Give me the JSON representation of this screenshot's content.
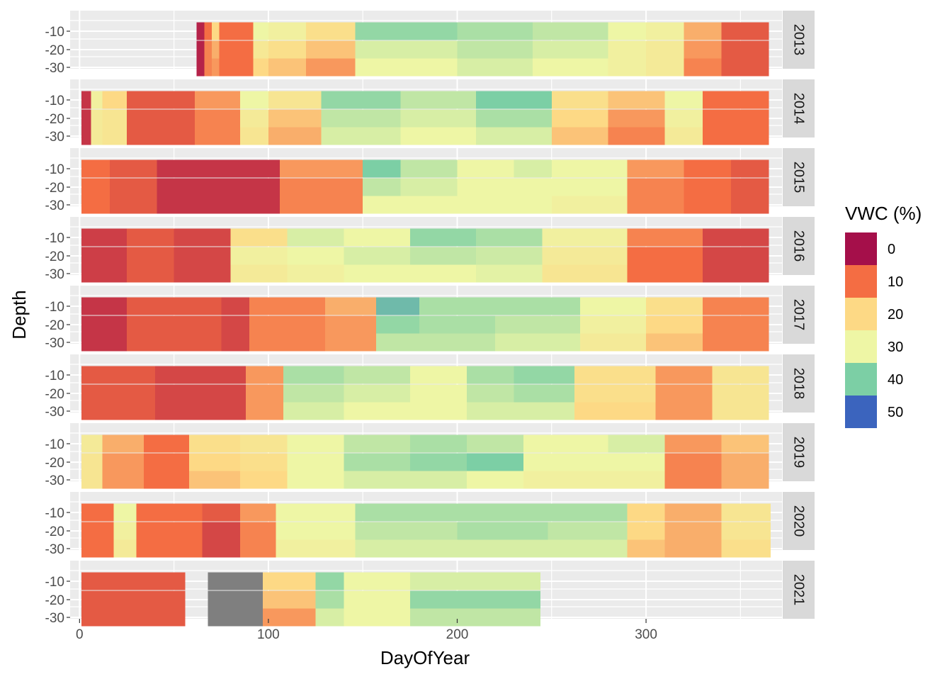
{
  "chart_data": {
    "type": "heatmap",
    "xlabel": "DayOfYear",
    "ylabel": "Depth",
    "xlim": [
      -5,
      372
    ],
    "x_ticks": [
      0,
      100,
      200,
      300
    ],
    "x_tick_labels": [
      "0",
      "100",
      "200",
      "300"
    ],
    "y_categories": [
      -10,
      -20,
      -30
    ],
    "y_tick_labels": [
      "-10",
      "-20",
      "-30"
    ],
    "facet_by": "year",
    "facet_labels": [
      "2013",
      "2014",
      "2015",
      "2016",
      "2017",
      "2018",
      "2019",
      "2020",
      "2021"
    ],
    "grid": true,
    "legend": {
      "title": "VWC (%)",
      "position": "right",
      "breaks": [
        0,
        10,
        20,
        30,
        40,
        50
      ],
      "labels": [
        "0",
        "10",
        "20",
        "30",
        "40",
        "50"
      ],
      "colors": [
        "#A50F4A",
        "#F46D43",
        "#FDD985",
        "#EEF6A5",
        "#7CCFA5",
        "#3B64BE"
      ]
    },
    "missing_color": "#7F7F7F",
    "series": [
      {
        "name": "2013",
        "start_day": 62,
        "end_day": 365,
        "segments": [
          [
            62,
            66,
            2,
            2,
            2
          ],
          [
            66,
            70,
            10,
            12,
            12
          ],
          [
            70,
            74,
            20,
            16,
            14
          ],
          [
            74,
            92,
            10,
            10,
            10
          ],
          [
            92,
            100,
            30,
            25,
            20
          ],
          [
            100,
            120,
            28,
            22,
            18
          ],
          [
            120,
            146,
            22,
            18,
            14
          ],
          [
            146,
            200,
            38,
            32,
            30
          ],
          [
            200,
            240,
            36,
            34,
            32
          ],
          [
            240,
            280,
            34,
            32,
            30
          ],
          [
            280,
            300,
            30,
            28,
            28
          ],
          [
            300,
            320,
            28,
            26,
            26
          ],
          [
            320,
            340,
            16,
            14,
            12
          ],
          [
            340,
            365,
            8,
            8,
            8
          ]
        ]
      },
      {
        "name": "2014",
        "start_day": 1,
        "end_day": 365,
        "segments": [
          [
            1,
            6,
            4,
            4,
            4
          ],
          [
            6,
            12,
            28,
            26,
            26
          ],
          [
            12,
            25,
            20,
            24,
            24
          ],
          [
            25,
            61,
            8,
            8,
            8
          ],
          [
            61,
            85,
            14,
            12,
            12
          ],
          [
            85,
            100,
            30,
            26,
            24
          ],
          [
            100,
            128,
            24,
            18,
            16
          ],
          [
            128,
            170,
            38,
            34,
            32
          ],
          [
            170,
            210,
            34,
            32,
            30
          ],
          [
            210,
            250,
            40,
            36,
            32
          ],
          [
            250,
            280,
            22,
            20,
            18
          ],
          [
            280,
            310,
            18,
            14,
            12
          ],
          [
            310,
            330,
            30,
            28,
            26
          ],
          [
            330,
            365,
            10,
            10,
            10
          ]
        ]
      },
      {
        "name": "2015",
        "start_day": 1,
        "end_day": 365,
        "segments": [
          [
            1,
            16,
            10,
            10,
            10
          ],
          [
            16,
            41,
            8,
            8,
            8
          ],
          [
            41,
            106,
            4,
            4,
            4
          ],
          [
            106,
            150,
            14,
            12,
            12
          ],
          [
            150,
            170,
            40,
            34,
            30
          ],
          [
            170,
            200,
            34,
            32,
            30
          ],
          [
            200,
            230,
            30,
            30,
            30
          ],
          [
            230,
            250,
            32,
            30,
            30
          ],
          [
            250,
            290,
            30,
            30,
            28
          ],
          [
            290,
            320,
            14,
            12,
            12
          ],
          [
            320,
            345,
            10,
            10,
            10
          ],
          [
            345,
            365,
            8,
            8,
            8
          ]
        ]
      },
      {
        "name": "2016",
        "start_day": 1,
        "end_day": 365,
        "segments": [
          [
            1,
            25,
            5,
            5,
            5
          ],
          [
            25,
            50,
            8,
            8,
            8
          ],
          [
            50,
            80,
            6,
            6,
            6
          ],
          [
            80,
            110,
            22,
            28,
            26
          ],
          [
            110,
            140,
            32,
            30,
            28
          ],
          [
            140,
            175,
            30,
            32,
            30
          ],
          [
            175,
            210,
            38,
            34,
            30
          ],
          [
            210,
            245,
            36,
            33,
            31
          ],
          [
            245,
            290,
            28,
            26,
            24
          ],
          [
            290,
            330,
            12,
            10,
            10
          ],
          [
            330,
            365,
            6,
            6,
            6
          ]
        ]
      },
      {
        "name": "2017",
        "start_day": 1,
        "end_day": 365,
        "segments": [
          [
            1,
            25,
            4,
            4,
            4
          ],
          [
            25,
            75,
            8,
            8,
            8
          ],
          [
            75,
            90,
            6,
            6,
            6
          ],
          [
            90,
            130,
            12,
            12,
            12
          ],
          [
            130,
            157,
            16,
            14,
            14
          ],
          [
            157,
            180,
            42,
            38,
            34
          ],
          [
            180,
            220,
            36,
            36,
            34
          ],
          [
            220,
            265,
            36,
            34,
            32
          ],
          [
            265,
            300,
            30,
            28,
            26
          ],
          [
            300,
            330,
            22,
            20,
            18
          ],
          [
            330,
            365,
            12,
            12,
            12
          ]
        ]
      },
      {
        "name": "2018",
        "start_day": 1,
        "end_day": 365,
        "segments": [
          [
            1,
            40,
            8,
            8,
            8
          ],
          [
            40,
            88,
            6,
            6,
            6
          ],
          [
            88,
            108,
            14,
            14,
            14
          ],
          [
            108,
            140,
            36,
            34,
            32
          ],
          [
            140,
            175,
            34,
            32,
            30
          ],
          [
            175,
            205,
            30,
            30,
            30
          ],
          [
            205,
            230,
            36,
            34,
            32
          ],
          [
            230,
            262,
            38,
            36,
            32
          ],
          [
            262,
            305,
            22,
            22,
            20
          ],
          [
            305,
            335,
            14,
            14,
            14
          ],
          [
            335,
            365,
            24,
            24,
            24
          ]
        ]
      },
      {
        "name": "2019",
        "start_day": 1,
        "end_day": 365,
        "segments": [
          [
            1,
            12,
            26,
            24,
            24
          ],
          [
            12,
            34,
            16,
            14,
            14
          ],
          [
            34,
            58,
            10,
            10,
            10
          ],
          [
            58,
            85,
            22,
            20,
            18
          ],
          [
            85,
            110,
            24,
            22,
            20
          ],
          [
            110,
            140,
            30,
            30,
            30
          ],
          [
            140,
            175,
            34,
            36,
            32
          ],
          [
            175,
            205,
            36,
            38,
            32
          ],
          [
            205,
            235,
            34,
            40,
            30
          ],
          [
            235,
            280,
            30,
            30,
            28
          ],
          [
            280,
            310,
            32,
            30,
            28
          ],
          [
            310,
            340,
            14,
            12,
            12
          ],
          [
            340,
            365,
            18,
            16,
            16
          ]
        ]
      },
      {
        "name": "2020",
        "start_day": 1,
        "end_day": 366,
        "segments": [
          [
            1,
            18,
            10,
            10,
            10
          ],
          [
            18,
            30,
            30,
            28,
            26
          ],
          [
            30,
            65,
            10,
            10,
            10
          ],
          [
            65,
            85,
            8,
            6,
            6
          ],
          [
            85,
            104,
            14,
            12,
            12
          ],
          [
            104,
            146,
            30,
            30,
            28
          ],
          [
            146,
            200,
            36,
            34,
            32
          ],
          [
            200,
            248,
            36,
            36,
            32
          ],
          [
            248,
            290,
            36,
            34,
            32
          ],
          [
            290,
            310,
            20,
            20,
            18
          ],
          [
            310,
            340,
            16,
            16,
            16
          ],
          [
            340,
            366,
            24,
            24,
            22
          ]
        ]
      },
      {
        "name": "2021",
        "start_day": 1,
        "end_day": 244,
        "segments": [
          [
            1,
            56,
            8,
            8,
            8
          ],
          [
            68,
            97,
            null,
            null,
            null
          ],
          [
            97,
            125,
            20,
            18,
            14
          ],
          [
            125,
            140,
            38,
            36,
            32
          ],
          [
            140,
            175,
            30,
            30,
            30
          ],
          [
            175,
            244,
            32,
            38,
            34
          ]
        ]
      }
    ]
  }
}
